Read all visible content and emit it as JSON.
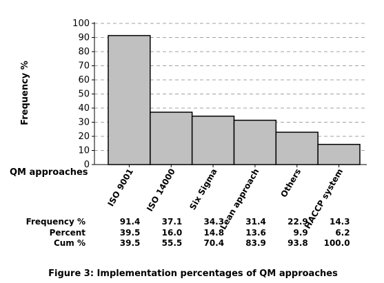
{
  "chart_data": {
    "type": "bar",
    "categories": [
      "ISO 9001",
      "ISO 14000",
      "Six Sigma",
      "Lean approach",
      "Others",
      "HACCP system"
    ],
    "values": [
      91.4,
      37.1,
      34.3,
      31.4,
      22.9,
      14.3
    ],
    "ylabel": "Frequency %",
    "xlabel": "QM approaches",
    "ylim": [
      0,
      100
    ],
    "yticks": [
      0,
      10,
      20,
      30,
      40,
      50,
      60,
      70,
      80,
      90,
      100
    ],
    "grid": true,
    "bar_color": "#c0c0c0",
    "table": {
      "rows": [
        {
          "label": "Frequency %",
          "values": [
            "91.4",
            "37.1",
            "34.3",
            "31.4",
            "22.9",
            "14.3"
          ]
        },
        {
          "label": "Percent",
          "values": [
            "39.5",
            "16.0",
            "14.8",
            "13.6",
            "9.9",
            "6.2"
          ]
        },
        {
          "label": "Cum %",
          "values": [
            "39.5",
            "55.5",
            "70.4",
            "83.9",
            "93.8",
            "100.0"
          ]
        }
      ]
    },
    "caption": "Figure 3: Implementation percentages of QM approaches"
  }
}
